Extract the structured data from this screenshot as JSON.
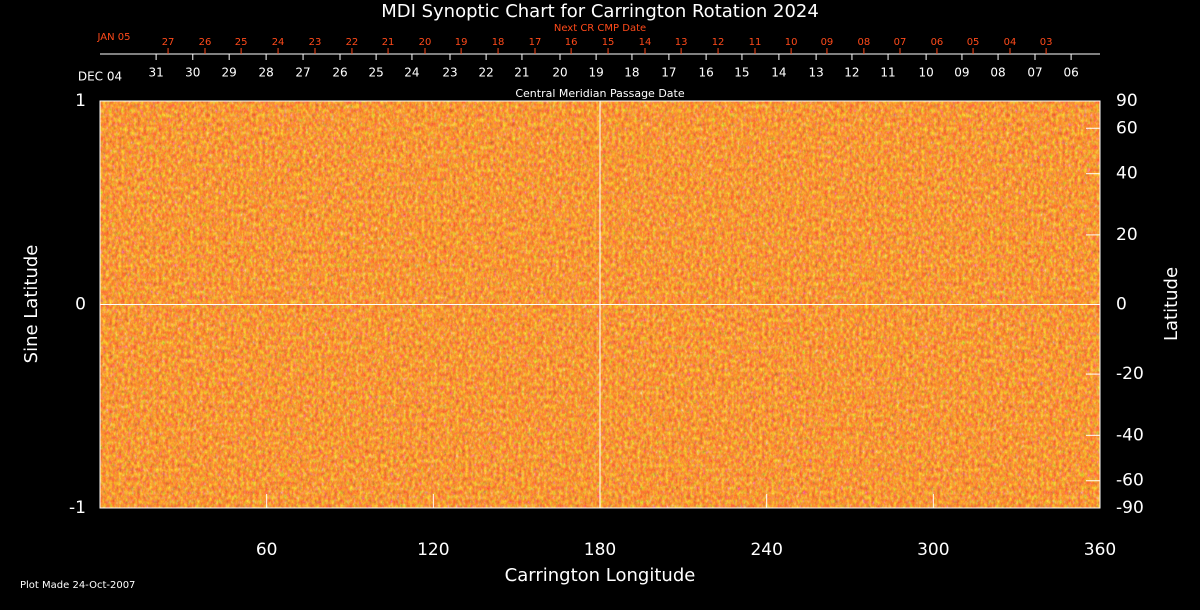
{
  "chart_data": {
    "type": "synoptic-map",
    "title": "MDI Synoptic Chart for Carrington Rotation 2024",
    "xlabel": "Carrington Longitude",
    "ylabel": "Sine Latitude",
    "y2label": "Latitude",
    "xlim": [
      0,
      360
    ],
    "xticks": [
      60,
      120,
      180,
      240,
      300,
      360
    ],
    "ylim": [
      -1,
      1
    ],
    "yticks": [
      -1,
      0,
      1
    ],
    "y2lim": [
      -90,
      90
    ],
    "y2scale": "sine",
    "y2ticks": [
      90,
      60,
      40,
      20,
      0,
      -20,
      -40,
      -60,
      -90
    ],
    "crosshair": true,
    "cmp_axis": {
      "title": "Central Meridian Passage Date",
      "start_label": "DEC 04",
      "color": "#ffffff",
      "labels": [
        "31",
        "30",
        "29",
        "28",
        "27",
        "26",
        "25",
        "24",
        "23",
        "22",
        "21",
        "20",
        "19",
        "18",
        "17",
        "16",
        "15",
        "14",
        "13",
        "12",
        "11",
        "10",
        "09",
        "08",
        "07",
        "06"
      ],
      "x": [
        20.2,
        33.4,
        46.5,
        59.8,
        73.1,
        86.4,
        99.4,
        112.3,
        126.0,
        139.0,
        151.9,
        165.6,
        178.6,
        191.5,
        204.8,
        218.2,
        231.1,
        244.4,
        257.8,
        270.7,
        283.7,
        297.4,
        310.3,
        323.3,
        336.6,
        349.6
      ]
    },
    "next_cmp_axis": {
      "title": "Next CR CMP Date",
      "start_label": "JAN 05",
      "color": "#ff4a1a",
      "labels": [
        "27",
        "26",
        "25",
        "24",
        "23",
        "22",
        "21",
        "20",
        "19",
        "18",
        "17",
        "16",
        "15",
        "14",
        "13",
        "12",
        "11",
        "10",
        "09",
        "08",
        "07",
        "06",
        "05",
        "04",
        "03"
      ],
      "x": [
        24.5,
        37.8,
        50.8,
        64.1,
        77.4,
        90.7,
        103.7,
        117.0,
        130.0,
        143.3,
        156.6,
        169.6,
        182.9,
        196.2,
        209.2,
        222.5,
        235.8,
        248.8,
        261.7,
        275.0,
        288.0,
        301.3,
        314.3,
        327.6,
        340.6
      ]
    },
    "footnote": "Plot Made 24-Oct-2007"
  }
}
